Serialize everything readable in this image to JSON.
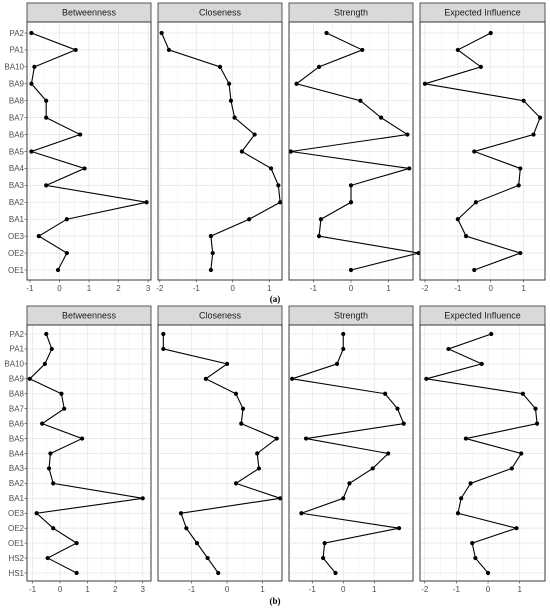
{
  "chart_data": [
    {
      "type": "line",
      "caption": "(a)",
      "facets": [
        "Betweenness",
        "Closeness",
        "Strength",
        "Expected Influence"
      ],
      "nodes": [
        "PA2",
        "PA1",
        "BA10",
        "BA9",
        "BA8",
        "BA7",
        "BA6",
        "BA5",
        "BA4",
        "BA3",
        "BA2",
        "BA1",
        "OE3",
        "OE2",
        "OE1"
      ],
      "x_ticks": [
        [
          "-1",
          "0",
          "1",
          "2",
          "3"
        ],
        [
          "-2",
          "-1",
          "0",
          "1"
        ],
        [
          "-1",
          "0",
          "1"
        ],
        [
          "-2",
          "-1",
          "0",
          "1"
        ]
      ],
      "tick_values": [
        [
          -1,
          0,
          1,
          2,
          3
        ],
        [
          -2,
          -1,
          0,
          1
        ],
        [
          -1,
          0,
          1
        ],
        [
          -2,
          -1,
          0,
          1
        ]
      ],
      "xlim": [
        [
          -1.1,
          3.1
        ],
        [
          -2.05,
          1.35
        ],
        [
          -1.65,
          1.65
        ],
        [
          -2.15,
          1.65
        ]
      ],
      "series": [
        {
          "name": "Betweenness",
          "values": [
            -0.95,
            0.55,
            -0.85,
            -0.95,
            -0.45,
            -0.45,
            0.7,
            -0.95,
            0.85,
            -0.45,
            2.95,
            0.25,
            -0.7,
            0.25,
            -0.05
          ]
        },
        {
          "name": "Closeness",
          "values": [
            -1.95,
            -1.75,
            -0.35,
            -0.1,
            -0.05,
            0.05,
            0.6,
            0.25,
            1.05,
            1.25,
            1.3,
            0.45,
            -0.6,
            -0.55,
            -0.6
          ]
        },
        {
          "name": "Strength",
          "values": [
            -0.65,
            0.3,
            -0.85,
            -1.45,
            0.25,
            0.8,
            1.5,
            -1.6,
            1.55,
            0.0,
            0.0,
            -0.8,
            -0.85,
            1.8,
            0.0
          ]
        },
        {
          "name": "Expected Influence",
          "values": [
            0.0,
            -1.0,
            -0.3,
            -2.0,
            1.0,
            1.5,
            1.3,
            -0.5,
            0.9,
            0.85,
            -0.45,
            -1.0,
            -0.75,
            0.9,
            -0.5
          ]
        }
      ]
    },
    {
      "type": "line",
      "caption": "(b)",
      "facets": [
        "Betweenness",
        "Closeness",
        "Strength",
        "Expected Influence"
      ],
      "nodes": [
        "PA2",
        "PA1",
        "BA10",
        "BA9",
        "BA8",
        "BA7",
        "BA6",
        "BA5",
        "BA4",
        "BA3",
        "BA2",
        "BA1",
        "OE3",
        "OE2",
        "OE1",
        "HS2",
        "HS1"
      ],
      "x_ticks": [
        [
          "-1",
          "0",
          "1",
          "2",
          "3"
        ],
        [
          "-1",
          "0",
          "1"
        ],
        [
          "-1",
          "0",
          "1"
        ],
        [
          "-2",
          "-1",
          "0",
          "1"
        ]
      ],
      "tick_values": [
        [
          -1,
          0,
          1,
          2,
          3
        ],
        [
          -1,
          0,
          1
        ],
        [
          -1,
          0,
          1
        ],
        [
          -2,
          -1,
          0,
          1
        ]
      ],
      "xlim": [
        [
          -1.2,
          3.3
        ],
        [
          -1.95,
          1.55
        ],
        [
          -1.75,
          2.25
        ],
        [
          -2.15,
          1.8
        ]
      ],
      "series": [
        {
          "name": "Betweenness",
          "values": [
            -0.5,
            -0.3,
            -0.55,
            -1.1,
            0.05,
            0.15,
            -0.65,
            0.8,
            -0.35,
            -0.4,
            -0.25,
            3.0,
            -0.85,
            -0.25,
            0.6,
            -0.45,
            0.6
          ]
        },
        {
          "name": "Closeness",
          "values": [
            -1.8,
            -1.8,
            0.0,
            -0.6,
            0.25,
            0.45,
            0.4,
            1.4,
            0.85,
            0.9,
            0.25,
            1.5,
            -1.3,
            -1.15,
            -0.85,
            -0.55,
            -0.25
          ]
        },
        {
          "name": "Strength",
          "values": [
            0.0,
            0.0,
            -0.2,
            -1.65,
            1.35,
            1.75,
            1.95,
            -1.2,
            1.45,
            0.95,
            0.2,
            0.0,
            -1.35,
            1.8,
            -0.6,
            -0.65,
            -0.25
          ]
        },
        {
          "name": "Expected Influence",
          "values": [
            0.1,
            -1.25,
            -0.2,
            -1.95,
            1.1,
            1.5,
            1.55,
            -0.7,
            1.05,
            0.75,
            -0.55,
            -0.85,
            -0.95,
            0.9,
            -0.5,
            -0.4,
            0.0
          ]
        }
      ]
    }
  ]
}
